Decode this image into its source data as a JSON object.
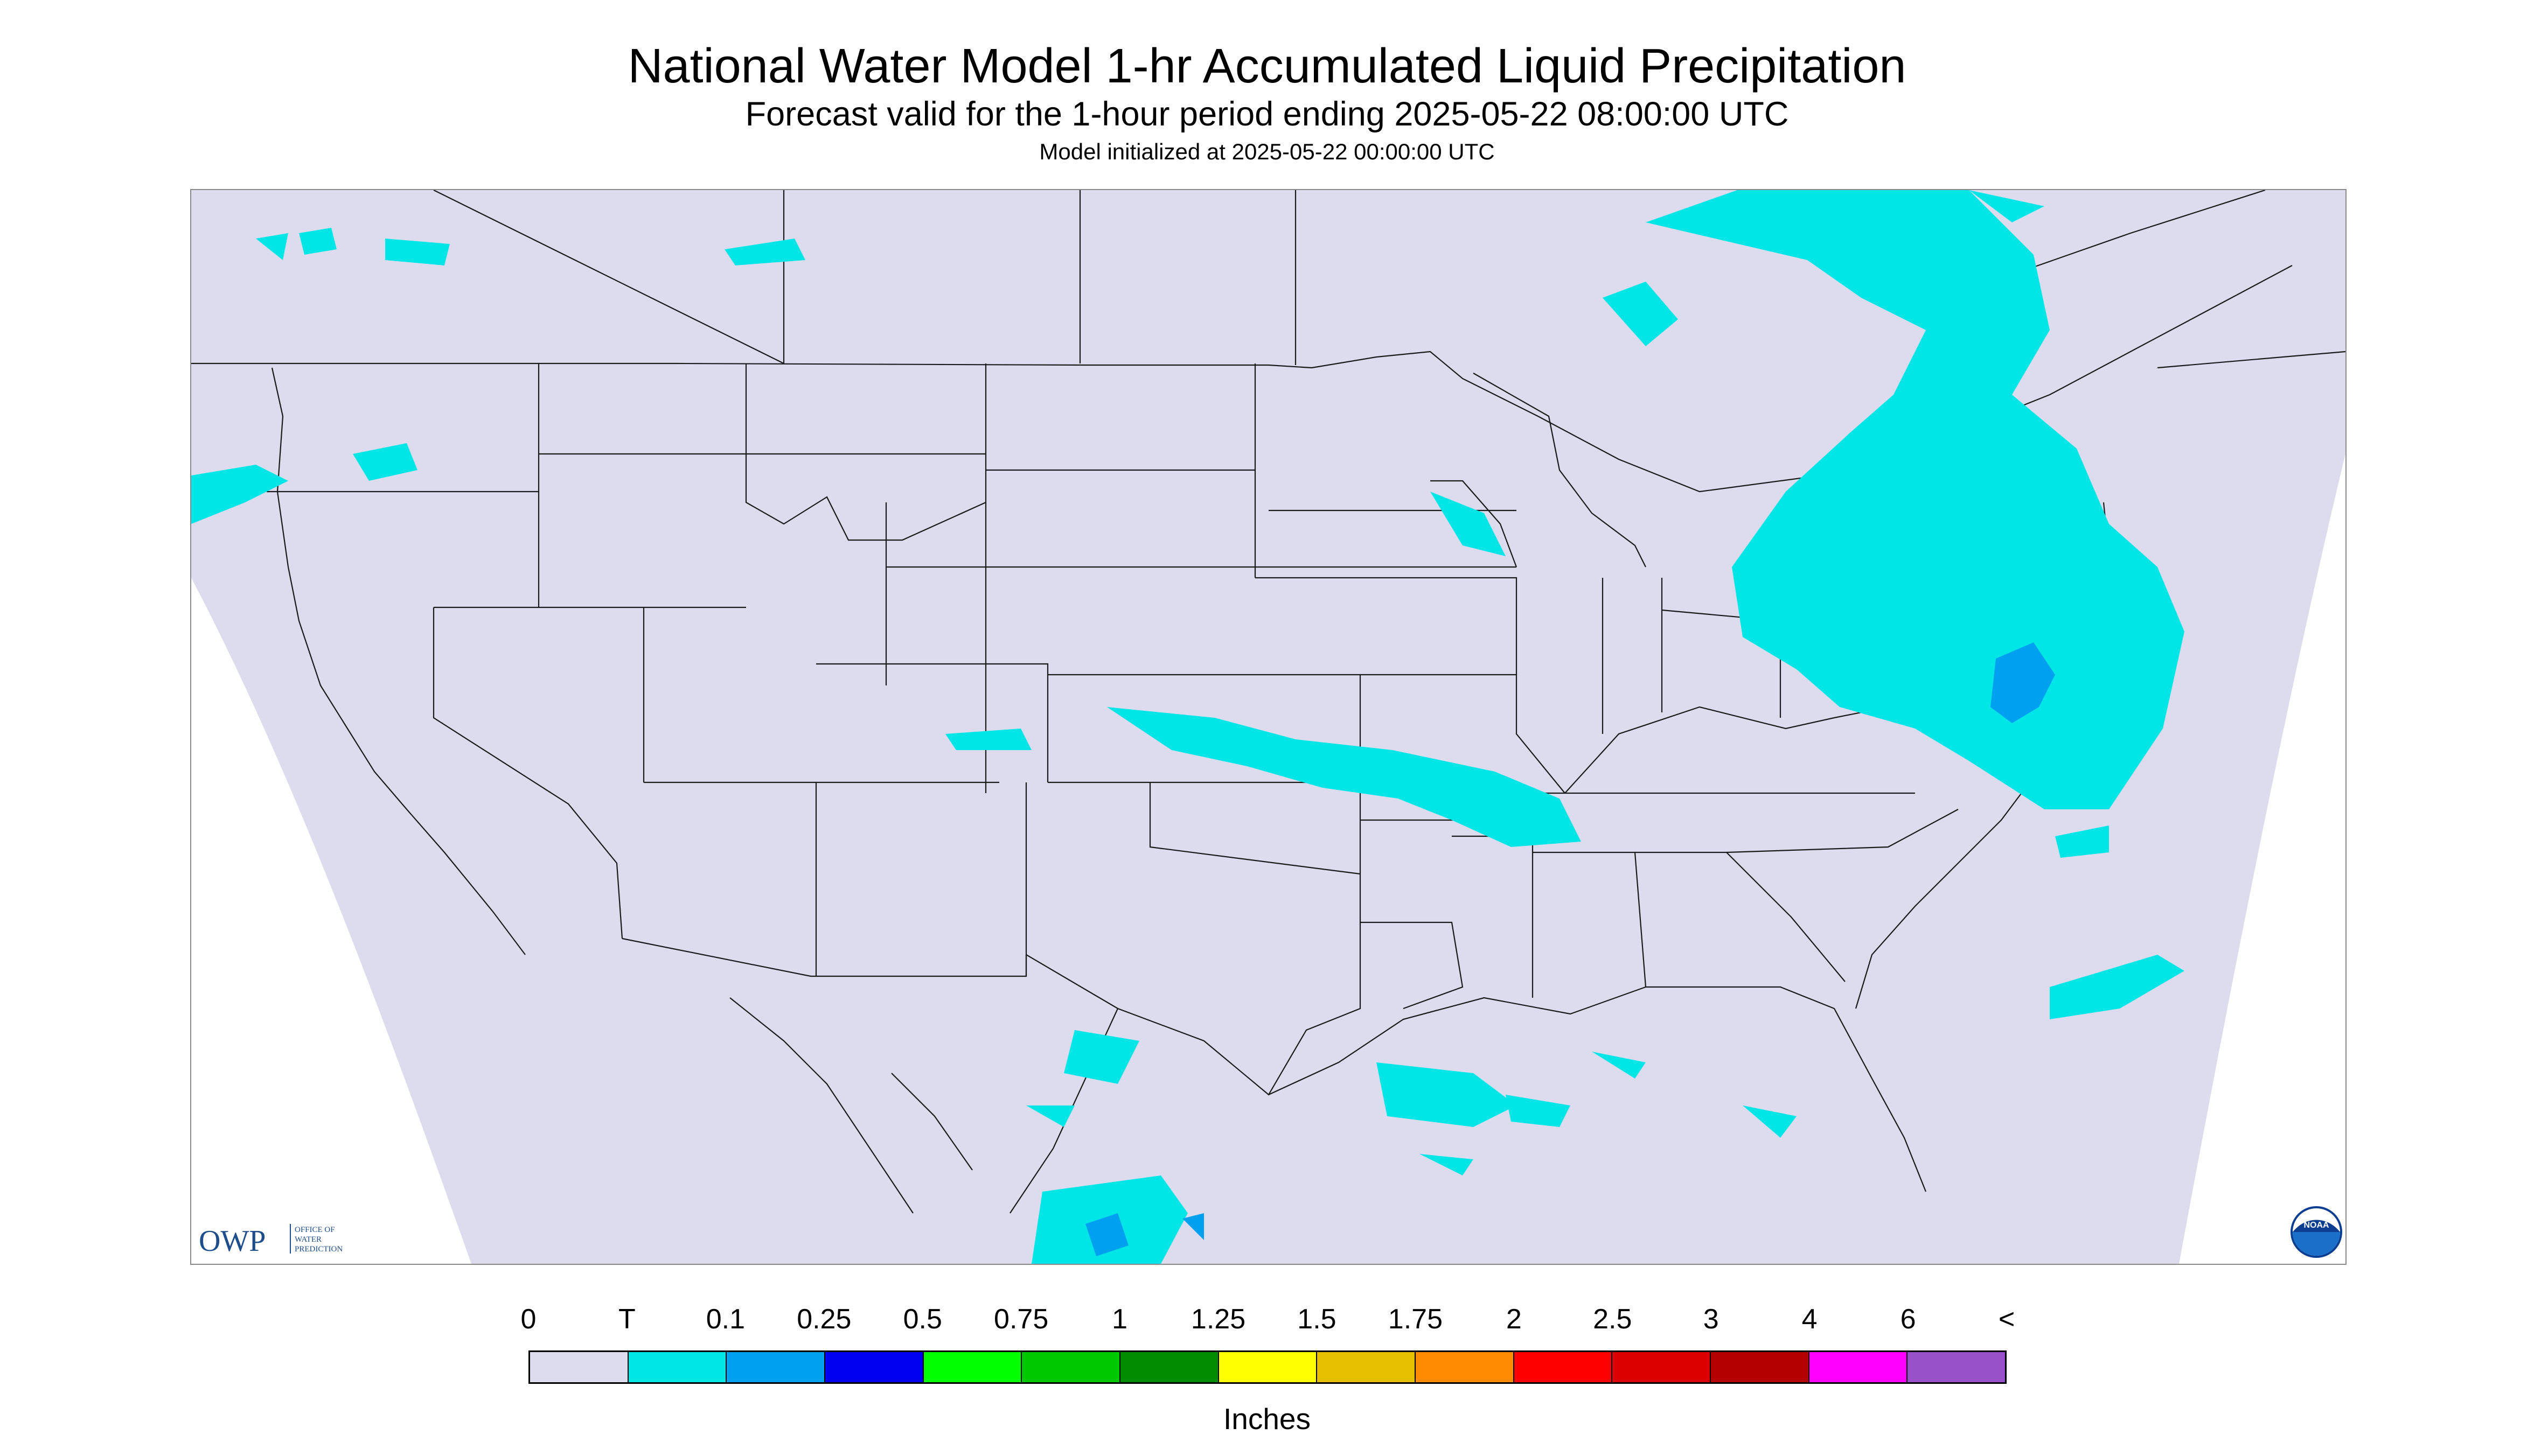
{
  "header": {
    "title": "National Water Model 1-hr Accumulated Liquid Precipitation",
    "subtitle": "Forecast valid for the 1-hour period ending 2025-05-22 08:00:00 UTC",
    "init_line": "Model initialized at 2025-05-22 00:00:00 UTC"
  },
  "map": {
    "background_color": "#dcdcee",
    "boundary_color": "#1a1a1a",
    "outside_color": "#ffffff",
    "precip_regions": [
      {
        "area": "Great Lakes to New England",
        "class": "T"
      },
      {
        "area": "Mid-Atlantic / Chesapeake",
        "class": "0.1"
      },
      {
        "area": "Kansas to Tennessee band",
        "class": "T"
      },
      {
        "area": "Gulf of Mexico scattered cells",
        "class": "T"
      },
      {
        "area": "Western Atlantic scattered cells",
        "class": "T"
      },
      {
        "area": "Pacific Northwest",
        "class": "T"
      },
      {
        "area": "Southern Mexico",
        "class": "0.1"
      }
    ],
    "logo_left": {
      "text": "OWP",
      "subtext": [
        "OFFICE OF",
        "WATER",
        "PREDICTION"
      ]
    },
    "logo_right": {
      "text": "NOAA"
    }
  },
  "legend": {
    "labels": [
      "0",
      "T",
      "0.1",
      "0.25",
      "0.5",
      "0.75",
      "1",
      "1.25",
      "1.5",
      "1.75",
      "2",
      "2.5",
      "3",
      "4",
      "6",
      "<"
    ],
    "colors": [
      "#dcdcee",
      "#00e6e6",
      "#00a0f0",
      "#0000f0",
      "#00ff00",
      "#00c800",
      "#008c00",
      "#ffff00",
      "#e6c000",
      "#ff8c00",
      "#ff0000",
      "#dc0000",
      "#b40000",
      "#ff00ff",
      "#9650c8"
    ],
    "units": "Inches"
  }
}
